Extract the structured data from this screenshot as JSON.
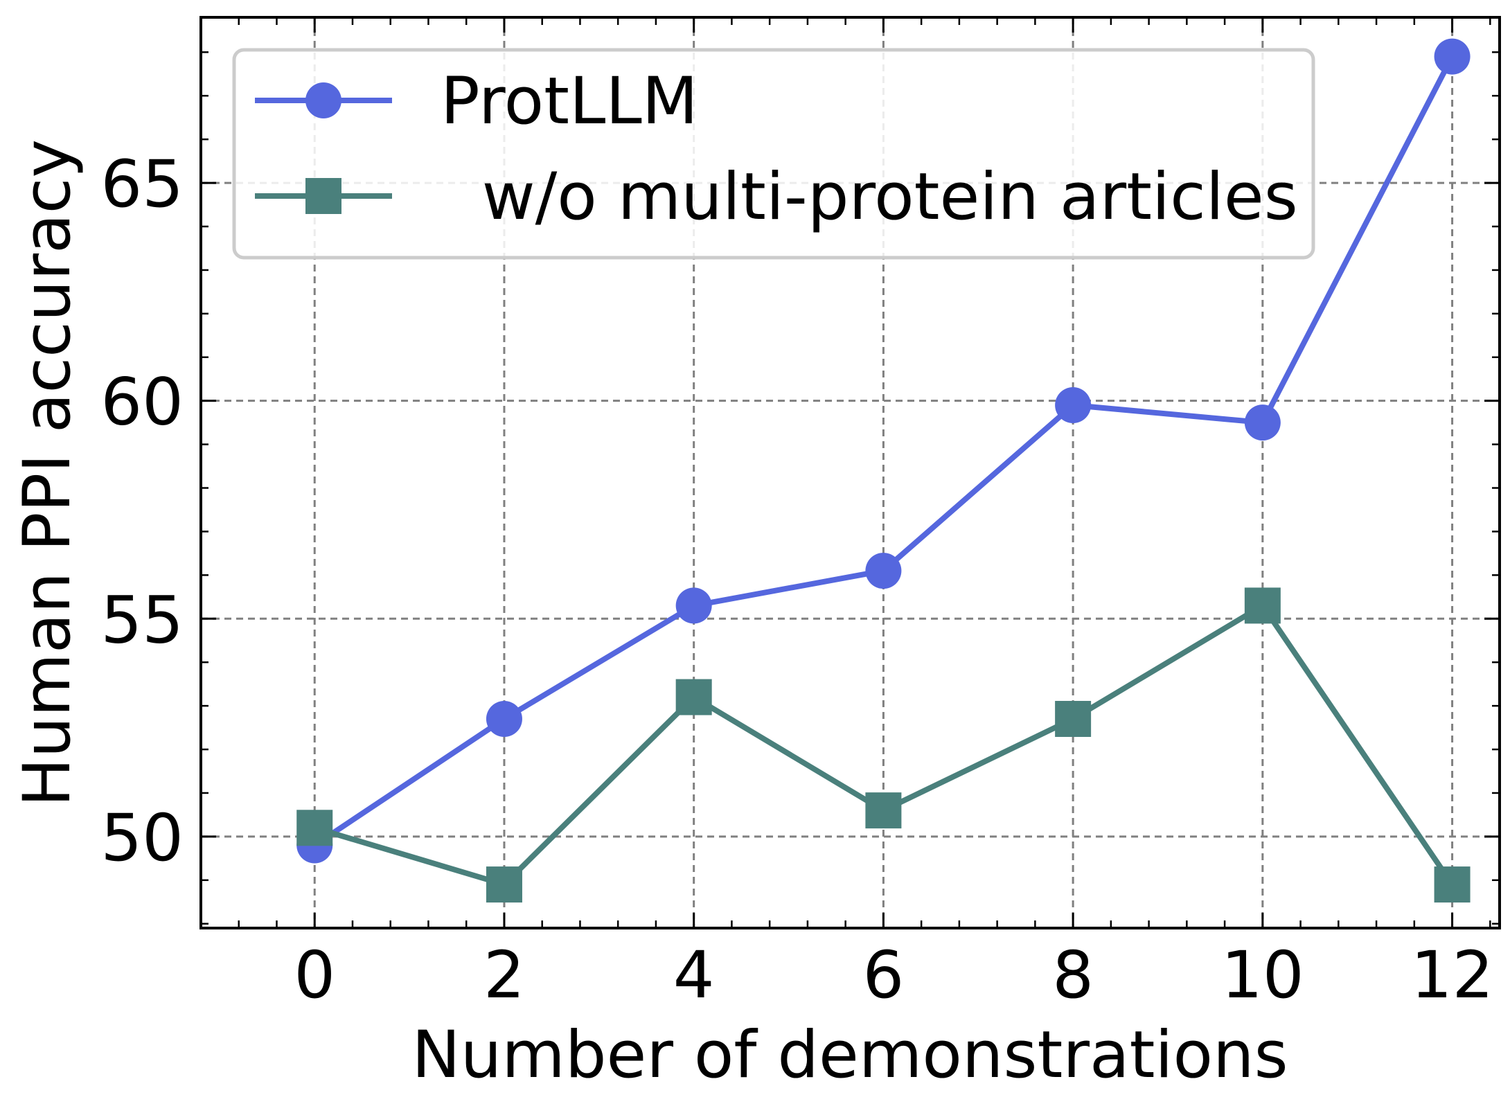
{
  "chart_data": {
    "type": "line",
    "title": "",
    "xlabel": "Number of demonstrations",
    "ylabel": "Human PPI accuracy",
    "x": [
      0,
      2,
      4,
      6,
      8,
      10,
      12
    ],
    "xlim": [
      -1.2,
      12.5
    ],
    "ylim": [
      47.9,
      68.8
    ],
    "xticks": [
      0,
      2,
      4,
      6,
      8,
      10,
      12
    ],
    "yticks": [
      50,
      55,
      60,
      65
    ],
    "grid": true,
    "legend_position": "top-left",
    "series": [
      {
        "name": "ProtLLM",
        "values": [
          49.8,
          52.7,
          55.3,
          56.1,
          59.9,
          59.5,
          67.9
        ],
        "color": "#5567de",
        "marker": "circle"
      },
      {
        "name": "  w/o multi-protein articles",
        "values": [
          50.2,
          48.9,
          53.2,
          50.6,
          52.7,
          55.3,
          48.9
        ],
        "color": "#4a807c",
        "marker": "square"
      }
    ]
  }
}
